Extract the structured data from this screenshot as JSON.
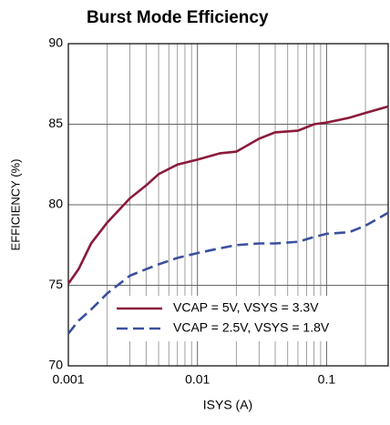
{
  "chart_data": {
    "type": "line",
    "title": "Burst Mode Efficiency",
    "x_label": "ISYS (A)",
    "y_label": "EFFICIENCY (%)",
    "xscale": "log",
    "xlim": [
      0.001,
      0.3
    ],
    "xticks": [
      0.001,
      0.01,
      0.1
    ],
    "xminorticks": [
      0.002,
      0.003,
      0.004,
      0.005,
      0.006,
      0.007,
      0.008,
      0.009,
      0.02,
      0.03,
      0.04,
      0.05,
      0.06,
      0.07,
      0.08,
      0.09,
      0.2,
      0.3
    ],
    "ylim": [
      70,
      90
    ],
    "yticks": [
      70,
      75,
      80,
      85,
      90
    ],
    "grid": true,
    "legend": "lower right",
    "x": [
      0.001,
      0.0012,
      0.0015,
      0.002,
      0.003,
      0.004,
      0.005,
      0.007,
      0.01,
      0.015,
      0.02,
      0.03,
      0.04,
      0.06,
      0.08,
      0.1,
      0.15,
      0.2,
      0.3
    ],
    "series": [
      {
        "name": "VCAP = 5V, VSYS = 3.3V",
        "color": "#8b1a3a",
        "dash": false,
        "values": [
          75.1,
          76.0,
          77.6,
          78.9,
          80.4,
          81.2,
          81.9,
          82.5,
          82.8,
          83.2,
          83.3,
          84.1,
          84.5,
          84.6,
          85.0,
          85.1,
          85.4,
          85.7,
          86.1
        ]
      },
      {
        "name": "VCAP = 2.5V, VSYS = 1.8V",
        "color": "#3a4fa0",
        "dash": true,
        "values": [
          72.0,
          72.8,
          73.5,
          74.5,
          75.6,
          76.0,
          76.3,
          76.7,
          77.0,
          77.3,
          77.5,
          77.6,
          77.6,
          77.7,
          78.0,
          78.2,
          78.3,
          78.7,
          79.5
        ]
      }
    ]
  }
}
